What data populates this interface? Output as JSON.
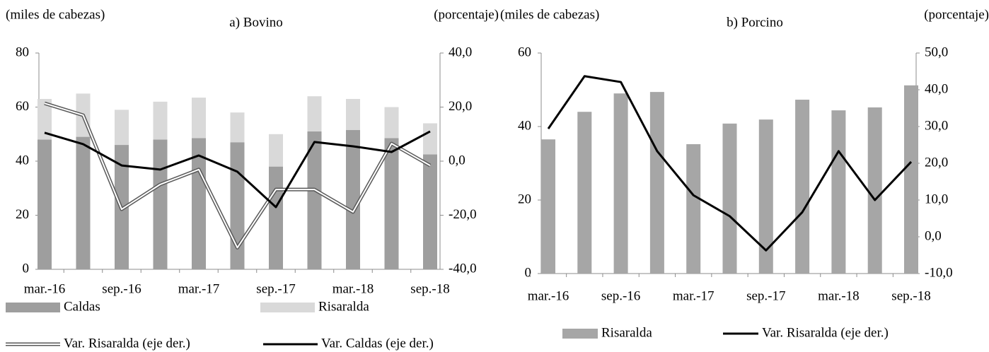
{
  "chart_data": [
    {
      "type": "bar",
      "stacked": true,
      "title": "a) Bovino",
      "y_label": "(miles de cabezas)",
      "y2_label": "(porcentaje)",
      "categories": [
        "mar.-16",
        null,
        "sep.-16",
        null,
        "mar.-17",
        null,
        "sep.-17",
        null,
        "mar.-18",
        null,
        "sep.-18"
      ],
      "ylim": [
        0,
        80
      ],
      "yticks": [
        0,
        20,
        40,
        60,
        80
      ],
      "y2lim": [
        -40,
        40
      ],
      "y2ticks": [
        {
          "value": -40,
          "label": "-40,0"
        },
        {
          "value": -20,
          "label": "-20,0"
        },
        {
          "value": 0,
          "label": "0,0"
        },
        {
          "value": 20,
          "label": "20,0"
        },
        {
          "value": 40,
          "label": "40,0"
        }
      ],
      "series": [
        {
          "name": "Caldas",
          "kind": "bar",
          "color": "#9e9e9e",
          "values": [
            48,
            49,
            46,
            48,
            48.5,
            47,
            38,
            51,
            51.5,
            48.5,
            42.5
          ]
        },
        {
          "name": "Risaralda",
          "kind": "bar",
          "color": "#d9d9d9",
          "values": [
            15,
            16,
            13,
            14,
            15,
            11,
            12,
            13,
            11.5,
            11.5,
            11.5
          ]
        },
        {
          "name": "Var. Risaralda (eje der.)",
          "kind": "line",
          "style": "double",
          "axis": "y2",
          "color": "#595959",
          "values": [
            21.4,
            17,
            -17.8,
            -8.6,
            -3.1,
            -32,
            -10.5,
            -10.5,
            -18.8,
            6.5,
            -1.6
          ]
        },
        {
          "name": "Var. Caldas (eje der.)",
          "kind": "line",
          "style": "solid",
          "axis": "y2",
          "color": "#000000",
          "values": [
            10.5,
            6.3,
            -1.6,
            -3.1,
            2.1,
            -3.9,
            -17,
            7.1,
            5.5,
            3.4,
            11
          ]
        }
      ]
    },
    {
      "type": "bar",
      "stacked": false,
      "title": "b) Porcino",
      "y_label": "(miles de cabezas)",
      "y2_label": "(porcentaje)",
      "categories": [
        "mar.-16",
        null,
        "sep.-16",
        null,
        "mar.-17",
        null,
        "sep.-17",
        null,
        "mar.-18",
        null,
        "sep.-18"
      ],
      "ylim": [
        0,
        60
      ],
      "yticks": [
        0,
        20,
        40,
        60
      ],
      "y2lim": [
        -10,
        50
      ],
      "y2ticks": [
        {
          "value": -10,
          "label": "-10,0"
        },
        {
          "value": 0,
          "label": "0,0"
        },
        {
          "value": 10,
          "label": "10,0"
        },
        {
          "value": 20,
          "label": "20,0"
        },
        {
          "value": 30,
          "label": "30,0"
        },
        {
          "value": 40,
          "label": "40,0"
        },
        {
          "value": 50,
          "label": "50,0"
        }
      ],
      "series": [
        {
          "name": "Risaralda",
          "kind": "bar",
          "color": "#a6a6a6",
          "values": [
            36.5,
            44,
            49,
            49.4,
            35.2,
            40.8,
            41.9,
            47.3,
            44.4,
            45.2,
            51.2
          ]
        },
        {
          "name": "Var. Risaralda (eje der.)",
          "kind": "line",
          "style": "solid",
          "axis": "y2",
          "color": "#000000",
          "values": [
            29.4,
            43.7,
            42.1,
            23.3,
            11.3,
            5.6,
            -3.7,
            6.7,
            23.3,
            10,
            20.4
          ]
        }
      ]
    }
  ]
}
